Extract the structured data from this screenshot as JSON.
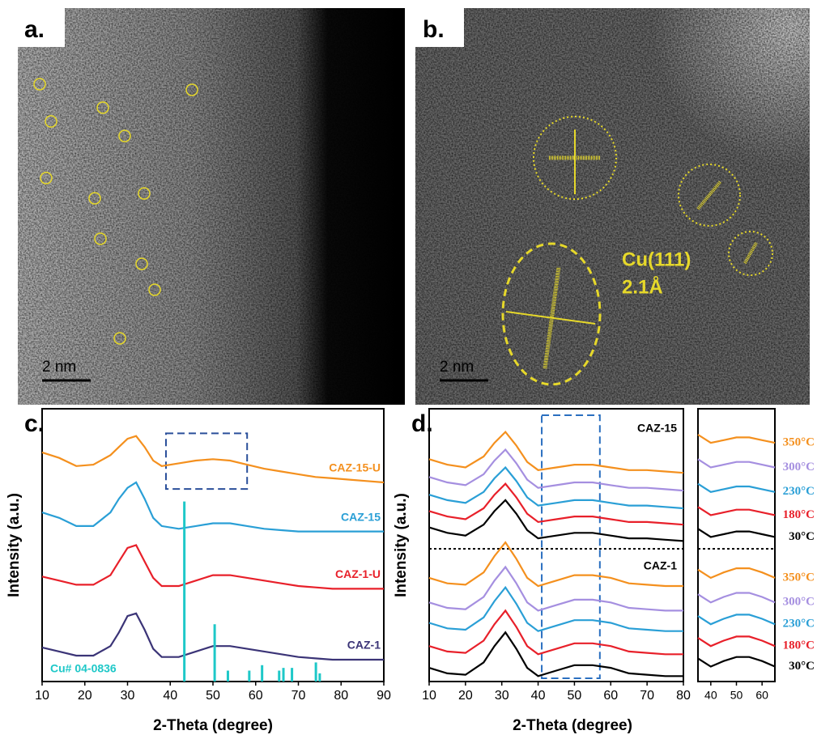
{
  "panels": {
    "a": {
      "label": "a.",
      "scale_bar": "2 nm"
    },
    "b": {
      "label": "b.",
      "scale_bar": "2 nm",
      "annotation": [
        "Cu(111)",
        "2.1Å"
      ]
    }
  },
  "chart_data": [
    {
      "type": "line",
      "panel_label": "c.",
      "x_label": "2-Theta (degree)",
      "y_label": "Intensity (a.u.)",
      "xlim": [
        10,
        90
      ],
      "xticks": [
        10,
        20,
        30,
        40,
        50,
        60,
        70,
        80,
        90
      ],
      "ylim": [
        0,
        100
      ],
      "highlight": {
        "x": [
          39,
          58
        ],
        "y": [
          70.6,
          91
        ]
      },
      "x": [
        10,
        14,
        18,
        22,
        26,
        28,
        30,
        32,
        34,
        36,
        38,
        42,
        46,
        50,
        54,
        58,
        62,
        66,
        70,
        74,
        78,
        82,
        86,
        90
      ],
      "series": [
        {
          "name": "CAZ-15-U",
          "color": "#f4901e",
          "values": [
            84,
            82,
            79,
            79.5,
            83,
            86,
            89,
            90,
            86,
            81,
            79,
            80,
            81,
            81.5,
            81,
            79.5,
            78,
            77,
            76,
            75,
            74.5,
            74,
            73.5,
            73
          ]
        },
        {
          "name": "CAZ-15",
          "color": "#2a9fd6",
          "values": [
            62,
            60,
            57,
            57,
            62,
            67,
            71,
            73,
            67,
            60,
            57,
            56,
            57,
            58,
            58,
            57,
            56,
            55.5,
            55,
            55,
            55,
            55,
            55,
            55
          ]
        },
        {
          "name": "CAZ-1-U",
          "color": "#e8202a",
          "values": [
            38.5,
            37,
            35.5,
            35.5,
            39,
            44,
            49,
            50,
            44,
            38,
            35,
            35,
            37,
            39,
            39,
            38,
            37,
            36,
            35,
            34.5,
            34,
            34,
            34,
            34
          ]
        },
        {
          "name": "CAZ-1",
          "color": "#3b3477",
          "values": [
            12.5,
            11,
            9.5,
            9.5,
            13,
            18,
            24,
            25,
            19,
            12,
            9,
            9,
            11,
            13,
            13,
            12,
            11,
            10,
            9,
            8.5,
            8,
            8,
            8,
            8
          ]
        }
      ],
      "reference": {
        "name": "Cu# 04-0836",
        "color": "#1ec8c8",
        "x": [
          43.3,
          50.4,
          53.5,
          58.5,
          61.5,
          65.5,
          66.5,
          68.5,
          74.1,
          75
        ],
        "values": [
          66,
          21,
          4,
          4,
          6,
          4,
          5,
          5,
          7,
          3
        ]
      }
    },
    {
      "type": "line",
      "panel_label": "d.",
      "x_label": "2-Theta (degree)",
      "y_label": "Intensity (a.u.)",
      "xlim": [
        10,
        80
      ],
      "xticks": [
        10,
        20,
        30,
        40,
        50,
        60,
        70,
        80
      ],
      "ylim": [
        0,
        100
      ],
      "highlight_x": [
        41,
        57
      ],
      "group_labels": [
        "CAZ-15",
        "CAZ-1"
      ],
      "x": [
        10,
        15,
        20,
        25,
        28,
        31,
        34,
        37,
        40,
        45,
        50,
        55,
        60,
        65,
        70,
        75,
        80
      ],
      "series": [
        {
          "color": "#000000",
          "values": [
            56.5,
            54.5,
            53.5,
            57.5,
            62.5,
            66.5,
            61.5,
            55.5,
            52.5,
            53.5,
            54.5,
            54.5,
            53.5,
            52.5,
            52.5,
            52,
            51.5
          ]
        },
        {
          "color": "#e8202a",
          "values": [
            62.5,
            60.5,
            59.5,
            63.5,
            68.5,
            72.5,
            67.5,
            61.5,
            58.5,
            59.5,
            60.5,
            60.5,
            59.5,
            58.5,
            58.5,
            58,
            57.5
          ]
        },
        {
          "color": "#2a9fd6",
          "values": [
            68.5,
            66.5,
            65.5,
            69.5,
            74.5,
            78.5,
            73.5,
            67.5,
            64.5,
            65.5,
            66.5,
            66.5,
            65.5,
            64.5,
            64.5,
            64,
            63.5
          ]
        },
        {
          "color": "#a58fe0",
          "values": [
            75,
            73,
            72,
            76,
            81,
            85,
            80,
            74,
            71,
            72,
            73,
            73,
            72,
            71,
            71,
            70.5,
            70
          ]
        },
        {
          "color": "#f4901e",
          "values": [
            81.5,
            79.5,
            78.5,
            82.5,
            87.5,
            91.5,
            86.5,
            80.5,
            77.5,
            78.5,
            79.5,
            79.5,
            78.5,
            77.5,
            77.5,
            77,
            76.5
          ]
        },
        {
          "color": "#000000",
          "values": [
            5,
            3,
            2.5,
            7,
            13,
            18,
            12,
            5,
            2,
            4,
            6,
            6,
            5,
            3,
            2.5,
            2,
            2
          ]
        },
        {
          "color": "#e8202a",
          "values": [
            13,
            11,
            10.5,
            15,
            21,
            26,
            20,
            13,
            10,
            12,
            14,
            14,
            13,
            11,
            10.5,
            10,
            10
          ]
        },
        {
          "color": "#2a9fd6",
          "values": [
            21.5,
            19.5,
            19,
            23.5,
            29.5,
            34.5,
            28.5,
            21.5,
            18.5,
            20.5,
            22.5,
            22.5,
            21.5,
            19.5,
            19,
            18.5,
            18.5
          ]
        },
        {
          "color": "#a58fe0",
          "values": [
            29,
            27,
            26.5,
            31,
            37,
            42,
            36,
            29,
            26,
            28,
            30,
            30,
            29,
            27,
            26.5,
            26,
            26
          ]
        },
        {
          "color": "#f4901e",
          "values": [
            38,
            36,
            35.5,
            40,
            46,
            51,
            45,
            38,
            35,
            37,
            39,
            39,
            38,
            36,
            35.5,
            35,
            35
          ]
        }
      ]
    },
    {
      "type": "line",
      "xlim": [
        35,
        65
      ],
      "xticks": [
        40,
        50,
        60
      ],
      "ylim": [
        0,
        100
      ],
      "x": [
        35,
        40,
        45,
        50,
        55,
        60,
        65
      ],
      "series": [
        {
          "name": "350°C",
          "color": "#f4901e",
          "values": [
            90.5,
            87.5,
            88.5,
            89.5,
            89.5,
            88.5,
            87.5
          ]
        },
        {
          "name": "300°C",
          "color": "#a58fe0",
          "values": [
            81.5,
            78.5,
            79.5,
            80.5,
            80.5,
            79.5,
            78.5
          ]
        },
        {
          "name": "230°C",
          "color": "#2a9fd6",
          "values": [
            72.5,
            69.5,
            70.5,
            71.5,
            71.5,
            70.5,
            69.5
          ]
        },
        {
          "name": "180°C",
          "color": "#e8202a",
          "values": [
            64,
            61,
            62,
            63,
            63,
            62,
            61
          ]
        },
        {
          "name": "30°C",
          "color": "#000000",
          "values": [
            56,
            53,
            54,
            55,
            55,
            54,
            53
          ]
        },
        {
          "name": "350°C",
          "color": "#f4901e",
          "values": [
            41,
            38,
            40,
            41.5,
            41.5,
            40,
            38
          ]
        },
        {
          "name": "300°C",
          "color": "#a58fe0",
          "values": [
            32,
            29,
            31,
            32.5,
            32.5,
            31,
            29
          ]
        },
        {
          "name": "230°C",
          "color": "#2a9fd6",
          "values": [
            24,
            21,
            23,
            24.5,
            24.5,
            23,
            21
          ]
        },
        {
          "name": "180°C",
          "color": "#e8202a",
          "values": [
            16,
            13,
            15,
            16.5,
            16.5,
            15,
            13
          ]
        },
        {
          "name": "30°C",
          "color": "#000000",
          "values": [
            8.5,
            5.5,
            7.5,
            9,
            9,
            7.5,
            5.5
          ]
        }
      ]
    }
  ]
}
